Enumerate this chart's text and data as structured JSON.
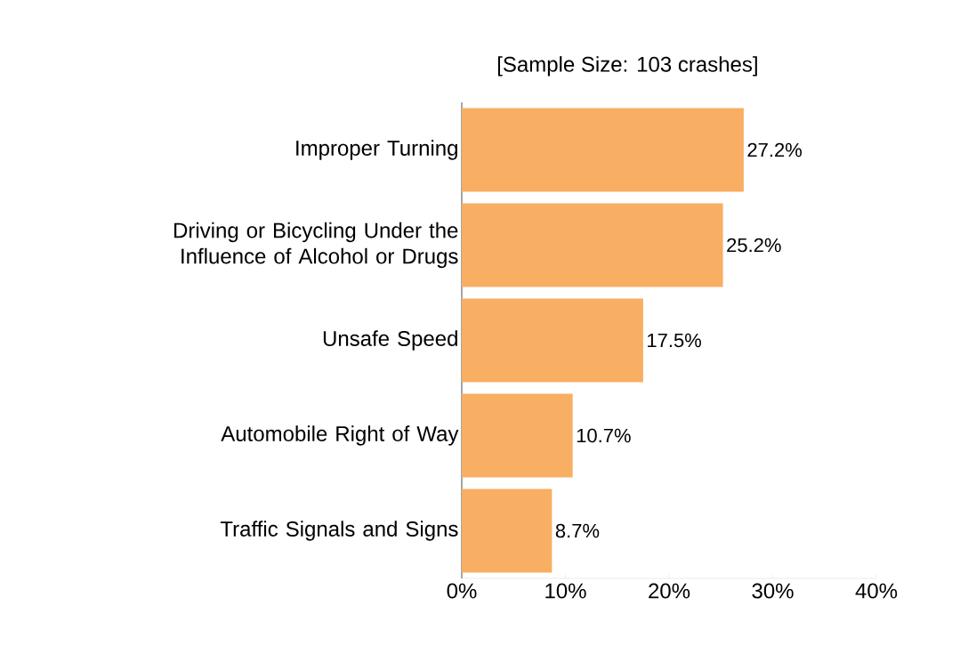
{
  "chart_data": {
    "type": "bar",
    "orientation": "horizontal",
    "title": "[Sample Size: 103 crashes]",
    "categories": [
      "Improper Turning",
      "Driving or Bicycling Under the Influence of Alcohol or Drugs",
      "Unsafe Speed",
      "Automobile Right of Way",
      "Traffic Signals and Signs"
    ],
    "values": [
      27.2,
      25.2,
      17.5,
      10.7,
      8.7
    ],
    "value_labels": [
      "27.2%",
      "25.2%",
      "17.5%",
      "10.7%",
      "8.7%"
    ],
    "color": "#f8ae63",
    "xlim": [
      0,
      40
    ],
    "xticks": [
      {
        "value": 0,
        "label": "0%"
      },
      {
        "value": 10,
        "label": "10%"
      },
      {
        "value": 20,
        "label": "20%"
      },
      {
        "value": 30,
        "label": "30%"
      },
      {
        "value": 40,
        "label": "40%"
      }
    ],
    "grid": false
  }
}
